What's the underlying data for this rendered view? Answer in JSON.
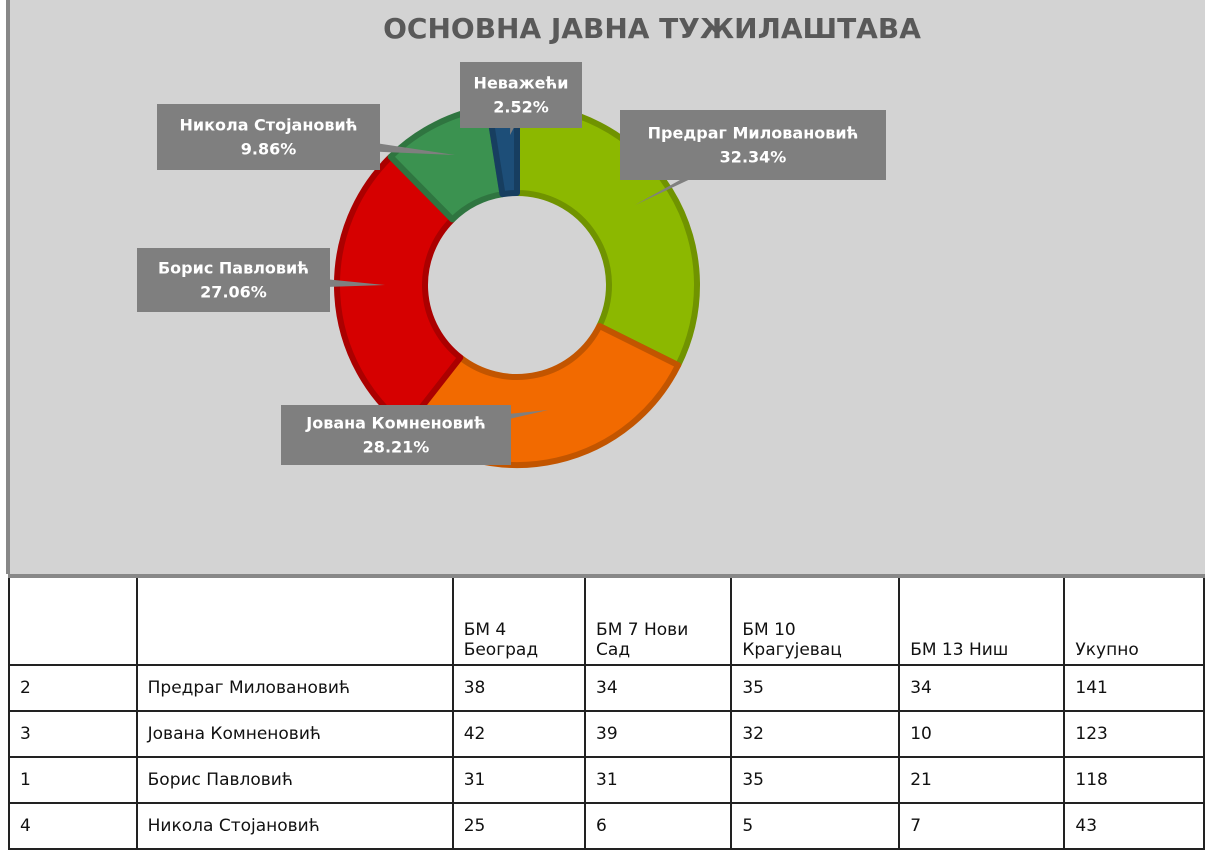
{
  "chart_data": {
    "type": "pie",
    "donut": true,
    "title": "ОСНОВНА ЈАВНА ТУЖИЛАШТАВА",
    "categories": [
      "Предраг Миловановић",
      "Јована Комненовић",
      "Борис Павловић",
      "Никола Стојановић",
      "Неважећи"
    ],
    "values": [
      32.34,
      28.21,
      27.06,
      9.86,
      2.52
    ],
    "value_labels": [
      "32.34%",
      "28.21%",
      "27.06%",
      "9.86%",
      "2.52%"
    ],
    "colors": [
      "#8cb800",
      "#f26a00",
      "#d60000",
      "#3b9250",
      "#1d4e78"
    ]
  },
  "table": {
    "columns": [
      "БМ 4 Београд",
      "БМ 7 Нови Сад",
      "БМ 10 Крагујевац",
      "БМ 13 Ниш",
      "Укупно"
    ],
    "rows": [
      [
        2,
        "Предраг Миловановић",
        38,
        34,
        35,
        34,
        141
      ],
      [
        3,
        "Јована Комненовић",
        42,
        39,
        32,
        10,
        123
      ],
      [
        1,
        "Борис Павловић",
        31,
        31,
        35,
        21,
        118
      ],
      [
        4,
        "Никола Стојановић",
        25,
        6,
        5,
        7,
        43
      ]
    ]
  }
}
